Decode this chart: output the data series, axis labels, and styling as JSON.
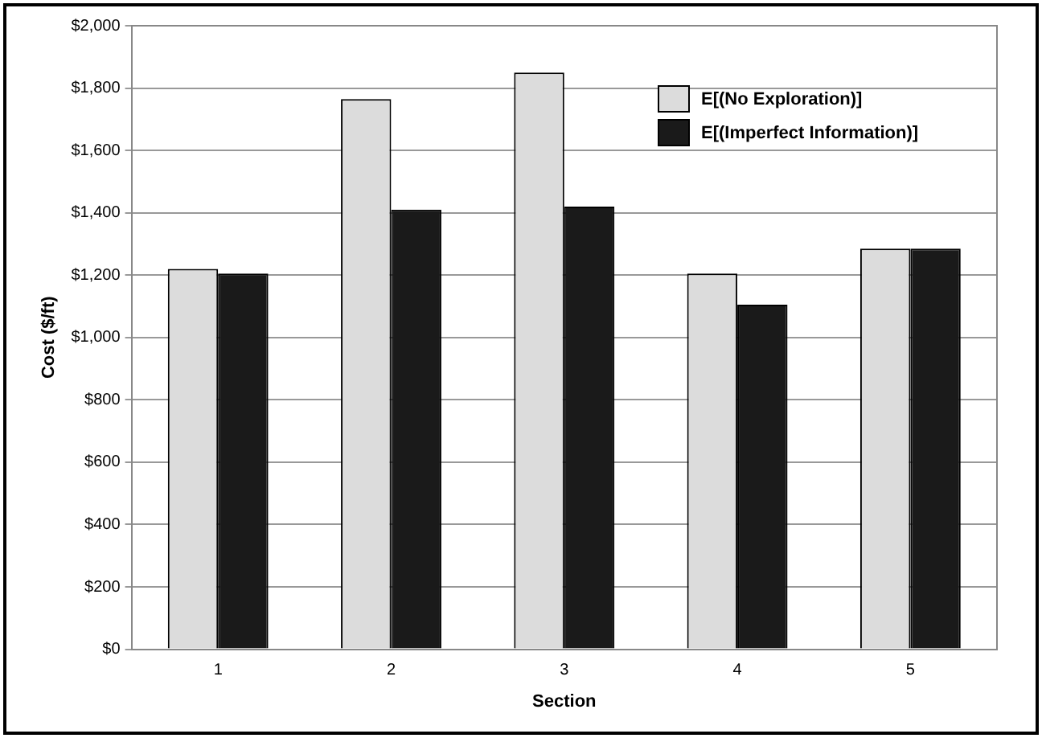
{
  "chart_data": {
    "type": "bar",
    "xlabel": "Section",
    "ylabel": "Cost ($/ft)",
    "categories": [
      "1",
      "2",
      "3",
      "4",
      "5"
    ],
    "series": [
      {
        "name": "E[(No Exploration)]",
        "color": "#dcdcdc",
        "values": [
          1220,
          1765,
          1850,
          1205,
          1285
        ]
      },
      {
        "name": "E[(Imperfect Information)]",
        "color": "#1a1a1a",
        "values": [
          1205,
          1410,
          1420,
          1105,
          1285
        ]
      }
    ],
    "ylim": [
      0,
      2000
    ],
    "yticks": [
      {
        "value": 0,
        "label": "$0"
      },
      {
        "value": 200,
        "label": "$200"
      },
      {
        "value": 400,
        "label": "$400"
      },
      {
        "value": 600,
        "label": "$600"
      },
      {
        "value": 800,
        "label": "$800"
      },
      {
        "value": 1000,
        "label": "$1,000"
      },
      {
        "value": 1200,
        "label": "$1,200"
      },
      {
        "value": 1400,
        "label": "$1,400"
      },
      {
        "value": 1600,
        "label": "$1,600"
      },
      {
        "value": 1800,
        "label": "$1,800"
      },
      {
        "value": 2000,
        "label": "$2,000"
      }
    ],
    "grid": "y",
    "legend": "top right"
  }
}
